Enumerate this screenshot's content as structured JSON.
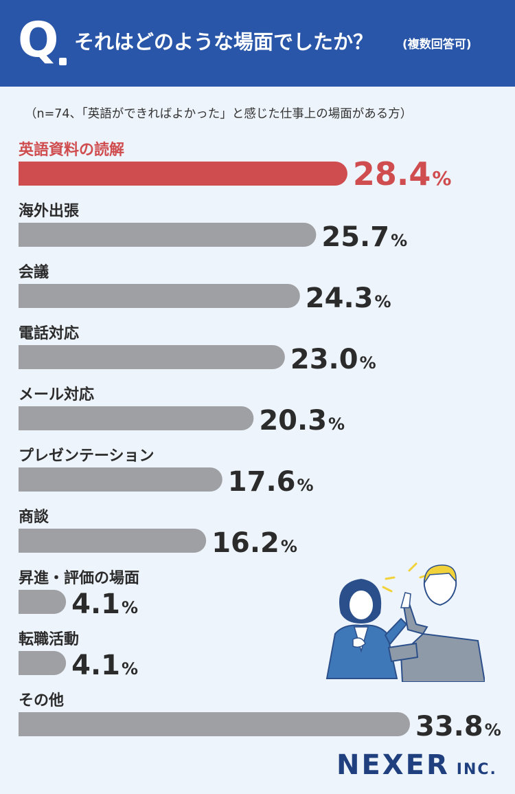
{
  "header": {
    "q_mark": "Q",
    "question": "それはどのような場面でしたか？",
    "question_note": "(複数回答可)"
  },
  "sample_note": "（n=74、「英語ができればよかった」と感じた仕事上の場面がある方）",
  "brand": {
    "name": "NEXER",
    "suffix": "INC."
  },
  "colors": {
    "header_bg": "#2956a8",
    "highlight": "#cf4c4f",
    "bar": "#9fa0a4",
    "background": "#eef4fb"
  },
  "chart_data": {
    "type": "bar",
    "orientation": "horizontal",
    "unit": "%",
    "categories": [
      "英語資料の読解",
      "海外出張",
      "会議",
      "電話対応",
      "メール対応",
      "プレゼンテーション",
      "商談",
      "昇進・評価の場面",
      "転職活動",
      "その他"
    ],
    "values": [
      28.4,
      25.7,
      24.3,
      23.0,
      20.3,
      17.6,
      16.2,
      4.1,
      4.1,
      33.8
    ],
    "value_labels": [
      "28.4",
      "25.7",
      "24.3",
      "23.0",
      "20.3",
      "17.6",
      "16.2",
      "4.1",
      "4.1",
      "33.8"
    ],
    "highlight_index": 0,
    "xlim": [
      0,
      33.8
    ],
    "grid": false
  }
}
